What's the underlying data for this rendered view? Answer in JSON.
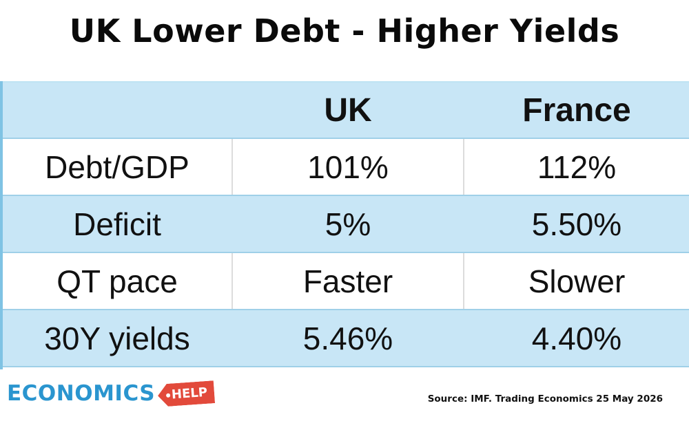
{
  "title": "UK Lower Debt - Higher Yields",
  "table": {
    "columns": [
      "",
      "UK",
      "France"
    ],
    "rows": [
      [
        "Debt/GDP",
        "101%",
        "112%"
      ],
      [
        "Deficit",
        "5%",
        "5.50%"
      ],
      [
        "QT pace",
        "Faster",
        "Slower"
      ],
      [
        "30Y yields",
        "5.46%",
        "4.40%"
      ]
    ]
  },
  "logo": {
    "text": "ECONOMICS",
    "tag": "HELP"
  },
  "source": "Source: IMF. Trading Economics 25 May 2026",
  "colors": {
    "row_blue": "#c8e6f6",
    "logo_blue": "#2a95cf",
    "logo_red": "#e24a3b"
  }
}
